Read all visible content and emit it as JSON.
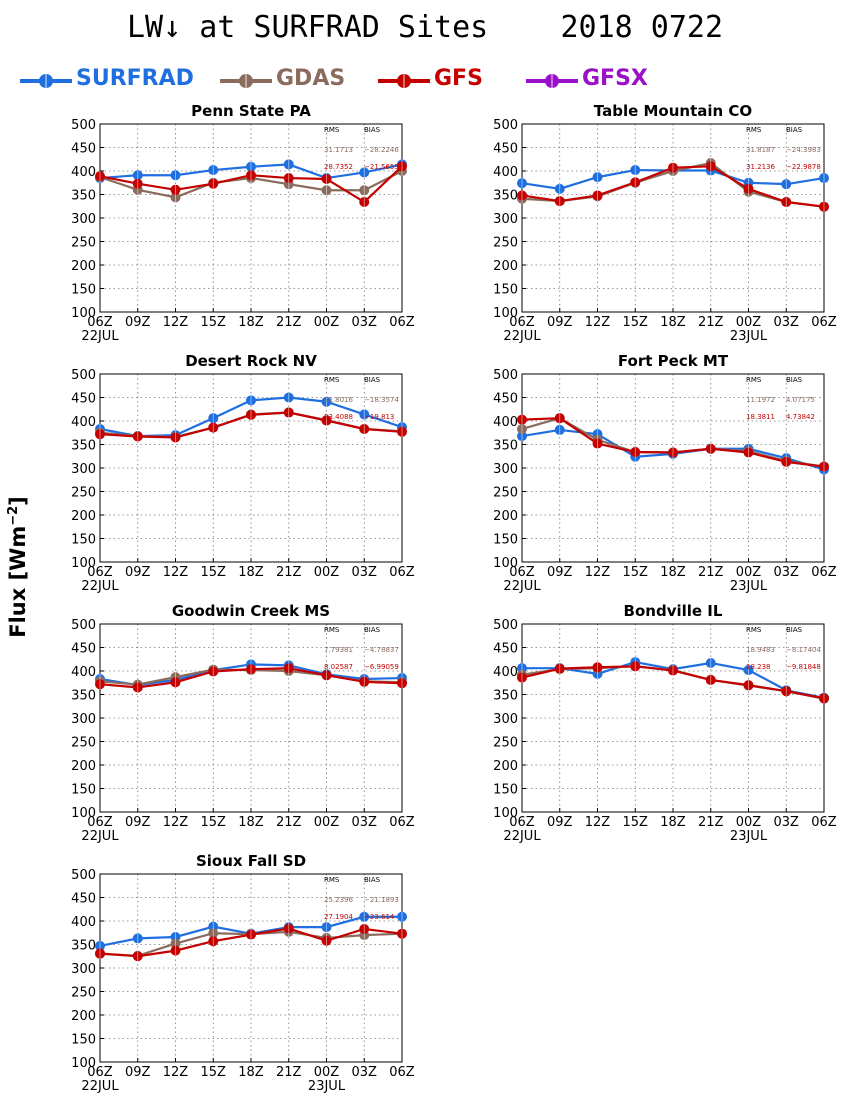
{
  "header": {
    "title": "LW↓ at SURFRAD Sites    2018 0722"
  },
  "legend": [
    {
      "name": "SURFRAD",
      "color": "#1f6fe0"
    },
    {
      "name": "GDAS",
      "color": "#8b6b5e"
    },
    {
      "name": "GFS",
      "color": "#c40000"
    },
    {
      "name": "GFSX",
      "color": "#9a10c8"
    }
  ],
  "y_axis_label": "Flux [Wm⁻²]",
  "chart_data": [
    {
      "type": "line",
      "title": "Penn State PA",
      "x": [
        "06Z",
        "09Z",
        "12Z",
        "15Z",
        "18Z",
        "21Z",
        "00Z",
        "03Z",
        "06Z"
      ],
      "date_labels": [
        {
          "index": 0,
          "text": "22JUL"
        }
      ],
      "ylim": [
        100,
        500
      ],
      "yticks": [
        100,
        150,
        200,
        250,
        300,
        350,
        400,
        450,
        500
      ],
      "grid": true,
      "series": [
        {
          "name": "SURFRAD",
          "color": "#1f6fe0",
          "values": [
            385,
            391,
            391,
            402,
            409,
            414,
            385,
            397,
            414
          ]
        },
        {
          "name": "GDAS",
          "color": "#8b6b5e",
          "values": [
            387,
            360,
            344,
            375,
            385,
            372,
            359,
            359,
            400
          ]
        },
        {
          "name": "GFS",
          "color": "#c40000",
          "values": [
            389,
            373,
            360,
            373,
            391,
            385,
            383,
            334,
            410
          ]
        }
      ],
      "stats": {
        "rms_label": "RMS",
        "bias_label": "BIAS",
        "rows": [
          {
            "color": "#8b6b5e",
            "rms": "31.1713",
            "bias": "−28.2246"
          },
          {
            "color": "#c40000",
            "rms": "28.7352",
            "bias": "−21.5653"
          }
        ]
      }
    },
    {
      "type": "line",
      "title": "Table Mountain CO",
      "x": [
        "06Z",
        "09Z",
        "12Z",
        "15Z",
        "18Z",
        "21Z",
        "00Z",
        "03Z",
        "06Z"
      ],
      "date_labels": [
        {
          "index": 0,
          "text": "22JUL"
        },
        {
          "index": 6,
          "text": "23JUL"
        }
      ],
      "ylim": [
        100,
        500
      ],
      "yticks": [
        100,
        150,
        200,
        250,
        300,
        350,
        400,
        450,
        500
      ],
      "grid": true,
      "series": [
        {
          "name": "SURFRAD",
          "color": "#1f6fe0",
          "values": [
            374,
            362,
            387,
            402,
            401,
            401,
            375,
            372,
            385
          ]
        },
        {
          "name": "GDAS",
          "color": "#8b6b5e",
          "values": [
            341,
            336,
            346,
            375,
            400,
            417,
            356,
            334,
            324
          ]
        },
        {
          "name": "GFS",
          "color": "#c40000",
          "values": [
            348,
            336,
            348,
            376,
            407,
            410,
            362,
            334,
            324
          ]
        }
      ],
      "stats": {
        "rms_label": "RMS",
        "bias_label": "BIAS",
        "rows": [
          {
            "color": "#8b6b5e",
            "rms": "31.8187",
            "bias": "−24.3983"
          },
          {
            "color": "#c40000",
            "rms": "31.2136",
            "bias": "−22.9878"
          }
        ]
      }
    },
    {
      "type": "line",
      "title": "Desert Rock NV",
      "x": [
        "06Z",
        "09Z",
        "12Z",
        "15Z",
        "18Z",
        "21Z",
        "00Z",
        "03Z",
        "06Z"
      ],
      "date_labels": [
        {
          "index": 0,
          "text": "22JUL"
        }
      ],
      "ylim": [
        100,
        500
      ],
      "yticks": [
        100,
        150,
        200,
        250,
        300,
        350,
        400,
        450,
        500
      ],
      "grid": true,
      "series": [
        {
          "name": "SURFRAD",
          "color": "#1f6fe0",
          "values": [
            383,
            368,
            370,
            406,
            444,
            450,
            441,
            414,
            387
          ]
        },
        {
          "name": "GDAS",
          "color": "#8b6b5e",
          "values": [
            375,
            368,
            366,
            386,
            414,
            418,
            402,
            383,
            378
          ]
        },
        {
          "name": "GFS",
          "color": "#c40000",
          "values": [
            372,
            367,
            365,
            386,
            413,
            418,
            401,
            383,
            377
          ]
        }
      ],
      "stats": {
        "rms_label": "RMS",
        "bias_label": "BIAS",
        "rows": [
          {
            "color": "#8b6b5e",
            "rms": "22.8016",
            "bias": "−18.3574"
          },
          {
            "color": "#c40000",
            "rms": "23.4088",
            "bias": "−19.813"
          }
        ]
      }
    },
    {
      "type": "line",
      "title": "Fort Peck MT",
      "x": [
        "06Z",
        "09Z",
        "12Z",
        "15Z",
        "18Z",
        "21Z",
        "00Z",
        "03Z",
        "06Z"
      ],
      "date_labels": [
        {
          "index": 0,
          "text": "22JUL"
        },
        {
          "index": 6,
          "text": "23JUL"
        }
      ],
      "ylim": [
        100,
        500
      ],
      "yticks": [
        100,
        150,
        200,
        250,
        300,
        350,
        400,
        450,
        500
      ],
      "grid": true,
      "series": [
        {
          "name": "SURFRAD",
          "color": "#1f6fe0",
          "values": [
            368,
            381,
            372,
            324,
            330,
            341,
            341,
            321,
            297
          ]
        },
        {
          "name": "GDAS",
          "color": "#8b6b5e",
          "values": [
            383,
            406,
            360,
            334,
            333,
            341,
            336,
            315,
            303
          ]
        },
        {
          "name": "GFS",
          "color": "#c40000",
          "values": [
            403,
            406,
            352,
            334,
            333,
            341,
            333,
            313,
            303
          ]
        }
      ],
      "stats": {
        "rms_label": "RMS",
        "bias_label": "BIAS",
        "rows": [
          {
            "color": "#8b6b5e",
            "rms": "11.1972",
            "bias": "4.07175"
          },
          {
            "color": "#c40000",
            "rms": "18.3811",
            "bias": "4.73842"
          }
        ]
      }
    },
    {
      "type": "line",
      "title": "Goodwin Creek MS",
      "x": [
        "06Z",
        "09Z",
        "12Z",
        "15Z",
        "18Z",
        "21Z",
        "00Z",
        "03Z",
        "06Z"
      ],
      "date_labels": [
        {
          "index": 0,
          "text": "22JUL"
        }
      ],
      "ylim": [
        100,
        500
      ],
      "yticks": [
        100,
        150,
        200,
        250,
        300,
        350,
        400,
        450,
        500
      ],
      "grid": true,
      "series": [
        {
          "name": "SURFRAD",
          "color": "#1f6fe0",
          "values": [
            383,
            370,
            381,
            402,
            414,
            412,
            393,
            383,
            385
          ]
        },
        {
          "name": "GDAS",
          "color": "#8b6b5e",
          "values": [
            378,
            371,
            387,
            403,
            402,
            400,
            391,
            378,
            376
          ]
        },
        {
          "name": "GFS",
          "color": "#c40000",
          "values": [
            372,
            365,
            376,
            399,
            404,
            406,
            391,
            377,
            374
          ]
        }
      ],
      "stats": {
        "rms_label": "RMS",
        "bias_label": "BIAS",
        "rows": [
          {
            "color": "#8b6b5e",
            "rms": "7.79381",
            "bias": "−4.78837"
          },
          {
            "color": "#c40000",
            "rms": "8.02587",
            "bias": "−6.99059"
          }
        ]
      }
    },
    {
      "type": "line",
      "title": "Bondville IL",
      "x": [
        "06Z",
        "09Z",
        "12Z",
        "15Z",
        "18Z",
        "21Z",
        "00Z",
        "03Z",
        "06Z"
      ],
      "date_labels": [
        {
          "index": 0,
          "text": "22JUL"
        },
        {
          "index": 6,
          "text": "23JUL"
        }
      ],
      "ylim": [
        100,
        500
      ],
      "yticks": [
        100,
        150,
        200,
        250,
        300,
        350,
        400,
        450,
        500
      ],
      "grid": true,
      "series": [
        {
          "name": "SURFRAD",
          "color": "#1f6fe0",
          "values": [
            406,
            406,
            394,
            419,
            404,
            417,
            402,
            359,
            343
          ]
        },
        {
          "name": "GDAS",
          "color": "#8b6b5e",
          "values": [
            392,
            404,
            406,
            410,
            402,
            381,
            369,
            357,
            341
          ]
        },
        {
          "name": "GFS",
          "color": "#c40000",
          "values": [
            386,
            405,
            408,
            410,
            401,
            381,
            370,
            357,
            342
          ]
        }
      ],
      "stats": {
        "rms_label": "RMS",
        "bias_label": "BIAS",
        "rows": [
          {
            "color": "#8b6b5e",
            "rms": "18.9483",
            "bias": "−8.17404"
          },
          {
            "color": "#c40000",
            "rms": "18.238",
            "bias": "−9.81848"
          }
        ]
      }
    },
    {
      "type": "line",
      "title": "Sioux Fall SD",
      "x": [
        "06Z",
        "09Z",
        "12Z",
        "15Z",
        "18Z",
        "21Z",
        "00Z",
        "03Z",
        "06Z"
      ],
      "date_labels": [
        {
          "index": 0,
          "text": "22JUL"
        },
        {
          "index": 6,
          "text": "23JUL"
        }
      ],
      "ylim": [
        100,
        500
      ],
      "yticks": [
        100,
        150,
        200,
        250,
        300,
        350,
        400,
        450,
        500
      ],
      "grid": true,
      "series": [
        {
          "name": "SURFRAD",
          "color": "#1f6fe0",
          "values": [
            347,
            363,
            366,
            388,
            373,
            387,
            387,
            409,
            409
          ]
        },
        {
          "name": "GDAS",
          "color": "#8b6b5e",
          "values": [
            330,
            326,
            352,
            374,
            372,
            377,
            364,
            370,
            373
          ]
        },
        {
          "name": "GFS",
          "color": "#c40000",
          "values": [
            331,
            325,
            337,
            357,
            371,
            384,
            358,
            383,
            373
          ]
        }
      ],
      "stats": {
        "rms_label": "RMS",
        "bias_label": "BIAS",
        "rows": [
          {
            "color": "#8b6b5e",
            "rms": "25.2396",
            "bias": "−21.1893"
          },
          {
            "color": "#c40000",
            "rms": "27.1904",
            "bias": "−23.614"
          }
        ]
      }
    }
  ]
}
